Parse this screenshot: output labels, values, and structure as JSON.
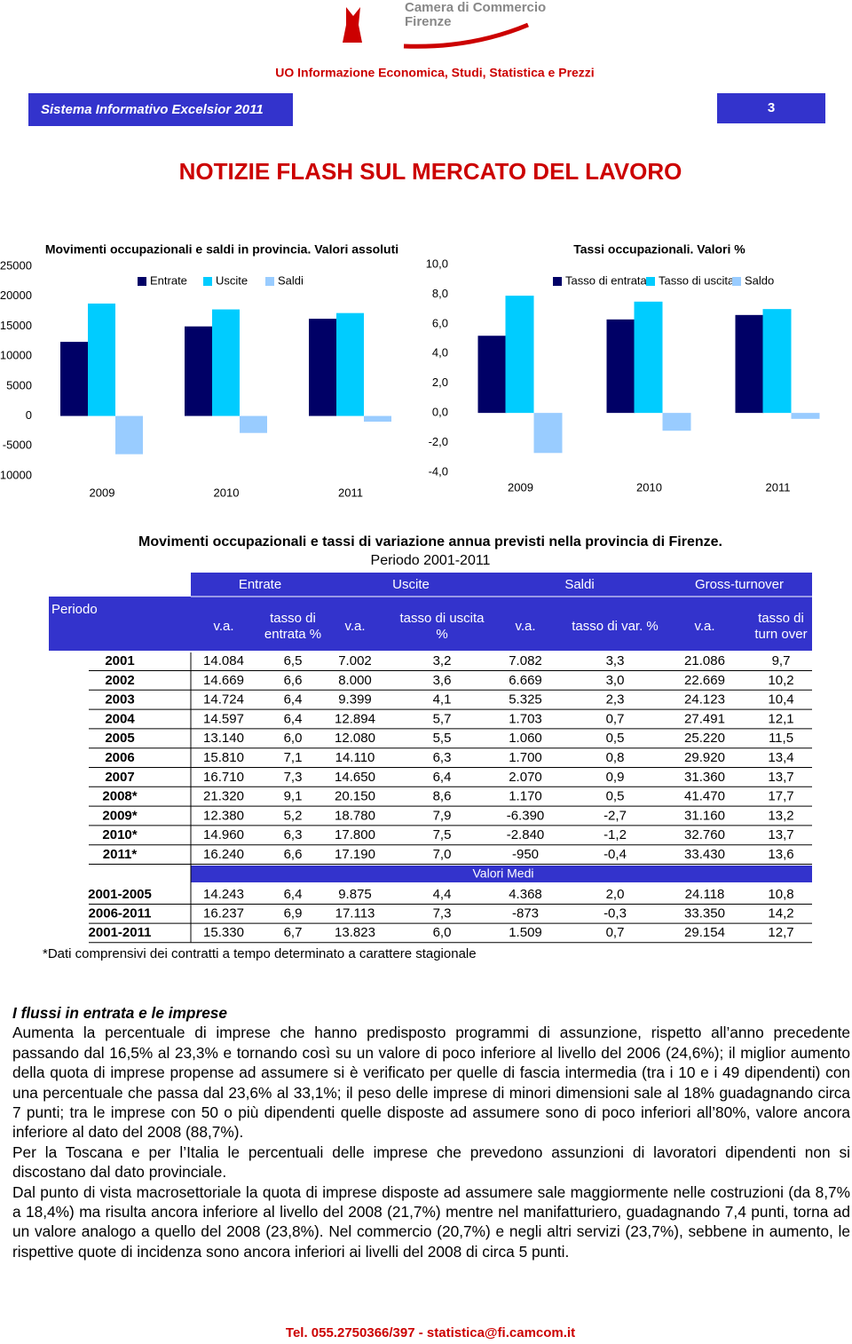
{
  "header": {
    "org_line1": "Camera di Commercio",
    "org_line2": "Firenze",
    "unit": "UO Informazione Economica, Studi, Statistica e Prezzi",
    "system": "Sistema Informativo Excelsior 2011",
    "page": "3",
    "title": "NOTIZIE FLASH SUL MERCATO DEL LAVORO"
  },
  "chart_data": [
    {
      "type": "bar",
      "title": "Movimenti occupazionali e saldi in provincia. Valori assoluti",
      "categories": [
        "2009",
        "2010",
        "2011"
      ],
      "series": [
        {
          "name": "Entrate",
          "color": "#000066",
          "values": [
            12380,
            14960,
            16240
          ]
        },
        {
          "name": "Uscite",
          "color": "#00ccff",
          "values": [
            18780,
            17800,
            17190
          ]
        },
        {
          "name": "Saldi",
          "color": "#99ccff",
          "values": [
            -6390,
            -2840,
            -950
          ]
        }
      ],
      "ylim": [
        -10000,
        25000
      ],
      "yticks": [
        -10000,
        -5000,
        0,
        5000,
        10000,
        15000,
        20000,
        25000
      ],
      "legend": "top",
      "grid": false
    },
    {
      "type": "bar",
      "title": "Tassi occupazionali. Valori %",
      "categories": [
        "2009",
        "2010",
        "2011"
      ],
      "series": [
        {
          "name": "Tasso di entrata",
          "color": "#000066",
          "values": [
            5.2,
            6.3,
            6.6
          ]
        },
        {
          "name": "Tasso di uscita",
          "color": "#00ccff",
          "values": [
            7.9,
            7.5,
            7.0
          ]
        },
        {
          "name": "Saldo",
          "color": "#99ccff",
          "values": [
            -2.7,
            -1.2,
            -0.4
          ]
        }
      ],
      "ylim": [
        -4,
        10
      ],
      "yticks": [
        {
          "value": -4,
          "label": "-4,0"
        },
        {
          "value": -2,
          "label": "-2,0"
        },
        {
          "value": 0,
          "label": "0,0"
        },
        {
          "value": 2,
          "label": "2,0"
        },
        {
          "value": 4,
          "label": "4,0"
        },
        {
          "value": 6,
          "label": "6,0"
        },
        {
          "value": 8,
          "label": "8,0"
        },
        {
          "value": 10,
          "label": "10,0"
        }
      ],
      "legend": "top",
      "grid": false
    }
  ],
  "table": {
    "title": "Movimenti occupazionali e tassi di variazione annua previsti nella provincia di Firenze.",
    "subtitle": "Periodo 2001-2011",
    "row_header": "Periodo",
    "groups": [
      "Entrate",
      "Uscite",
      "Saldi",
      "Gross-turnover"
    ],
    "subheaders": [
      [
        "v.a."
      ],
      [
        "tasso di",
        "entrata %"
      ],
      [
        "v.a."
      ],
      [
        "tasso di uscita",
        "%"
      ],
      [
        "v.a."
      ],
      [
        "tasso di var. %"
      ],
      [
        "v.a."
      ],
      [
        "tasso di",
        "turn over"
      ]
    ],
    "rows": [
      [
        "2001",
        "14.084",
        "6,5",
        "7.002",
        "3,2",
        "7.082",
        "3,3",
        "21.086",
        "9,7"
      ],
      [
        "2002",
        "14.669",
        "6,6",
        "8.000",
        "3,6",
        "6.669",
        "3,0",
        "22.669",
        "10,2"
      ],
      [
        "2003",
        "14.724",
        "6,4",
        "9.399",
        "4,1",
        "5.325",
        "2,3",
        "24.123",
        "10,4"
      ],
      [
        "2004",
        "14.597",
        "6,4",
        "12.894",
        "5,7",
        "1.703",
        "0,7",
        "27.491",
        "12,1"
      ],
      [
        "2005",
        "13.140",
        "6,0",
        "12.080",
        "5,5",
        "1.060",
        "0,5",
        "25.220",
        "11,5"
      ],
      [
        "2006",
        "15.810",
        "7,1",
        "14.110",
        "6,3",
        "1.700",
        "0,8",
        "29.920",
        "13,4"
      ],
      [
        "2007",
        "16.710",
        "7,3",
        "14.650",
        "6,4",
        "2.070",
        "0,9",
        "31.360",
        "13,7"
      ],
      [
        "2008*",
        "21.320",
        "9,1",
        "20.150",
        "8,6",
        "1.170",
        "0,5",
        "41.470",
        "17,7"
      ],
      [
        "2009*",
        "12.380",
        "5,2",
        "18.780",
        "7,9",
        "-6.390",
        "-2,7",
        "31.160",
        "13,2"
      ],
      [
        "2010*",
        "14.960",
        "6,3",
        "17.800",
        "7,5",
        "-2.840",
        "-1,2",
        "32.760",
        "13,7"
      ],
      [
        "2011*",
        "16.240",
        "6,6",
        "17.190",
        "7,0",
        "-950",
        "-0,4",
        "33.430",
        "13,6"
      ]
    ],
    "averages_label": "Valori Medi",
    "averages": [
      [
        "2001-2005",
        "14.243",
        "6,4",
        "9.875",
        "4,4",
        "4.368",
        "2,0",
        "24.118",
        "10,8"
      ],
      [
        "2006-2011",
        "16.237",
        "6,9",
        "17.113",
        "7,3",
        "-873",
        "-0,3",
        "33.350",
        "14,2"
      ],
      [
        "2001-2011",
        "15.330",
        "6,7",
        "13.823",
        "6,0",
        "1.509",
        "0,7",
        "29.154",
        "12,7"
      ]
    ],
    "footnote": "*Dati comprensivi dei contratti a tempo determinato a carattere stagionale"
  },
  "article": {
    "heading": "I flussi in entrata e le imprese",
    "paragraphs": [
      "Aumenta la percentuale di imprese che hanno predisposto programmi di assunzione, rispetto all’anno precedente passando dal 16,5% al 23,3% e tornando così su un valore di poco inferiore al livello del 2006 (24,6%); il miglior aumento della quota di imprese propense ad assumere si è verificato per quelle di fascia intermedia (tra i 10 e i 49 dipendenti) con una percentuale che passa dal 23,6% al 33,1%; il peso delle imprese di minori dimensioni sale al 18% guadagnando circa 7 punti; tra le imprese con 50 o più dipendenti quelle disposte ad assumere sono di poco inferiori all’80%, valore ancora inferiore al dato del 2008 (88,7%).",
      "Per la Toscana e per l’Italia le percentuali delle imprese che prevedono assunzioni di lavoratori dipendenti non si discostano dal dato provinciale.",
      "Dal punto di vista macrosettoriale la quota di imprese disposte ad assumere sale maggiormente nelle costruzioni (da 8,7% a 18,4%) ma risulta ancora inferiore al livello del 2008 (21,7%) mentre nel manifatturiero, guadagnando 7,4 punti, torna ad un valore analogo a quello del 2008 (23,8%). Nel commercio (20,7%) e negli altri servizi (23,7%), sebbene in aumento, le rispettive quote di incidenza sono ancora inferiori ai livelli del 2008 di circa 5 punti."
    ]
  },
  "footer": "Tel. 055.2750366/397  -  statistica@fi.camcom.it"
}
